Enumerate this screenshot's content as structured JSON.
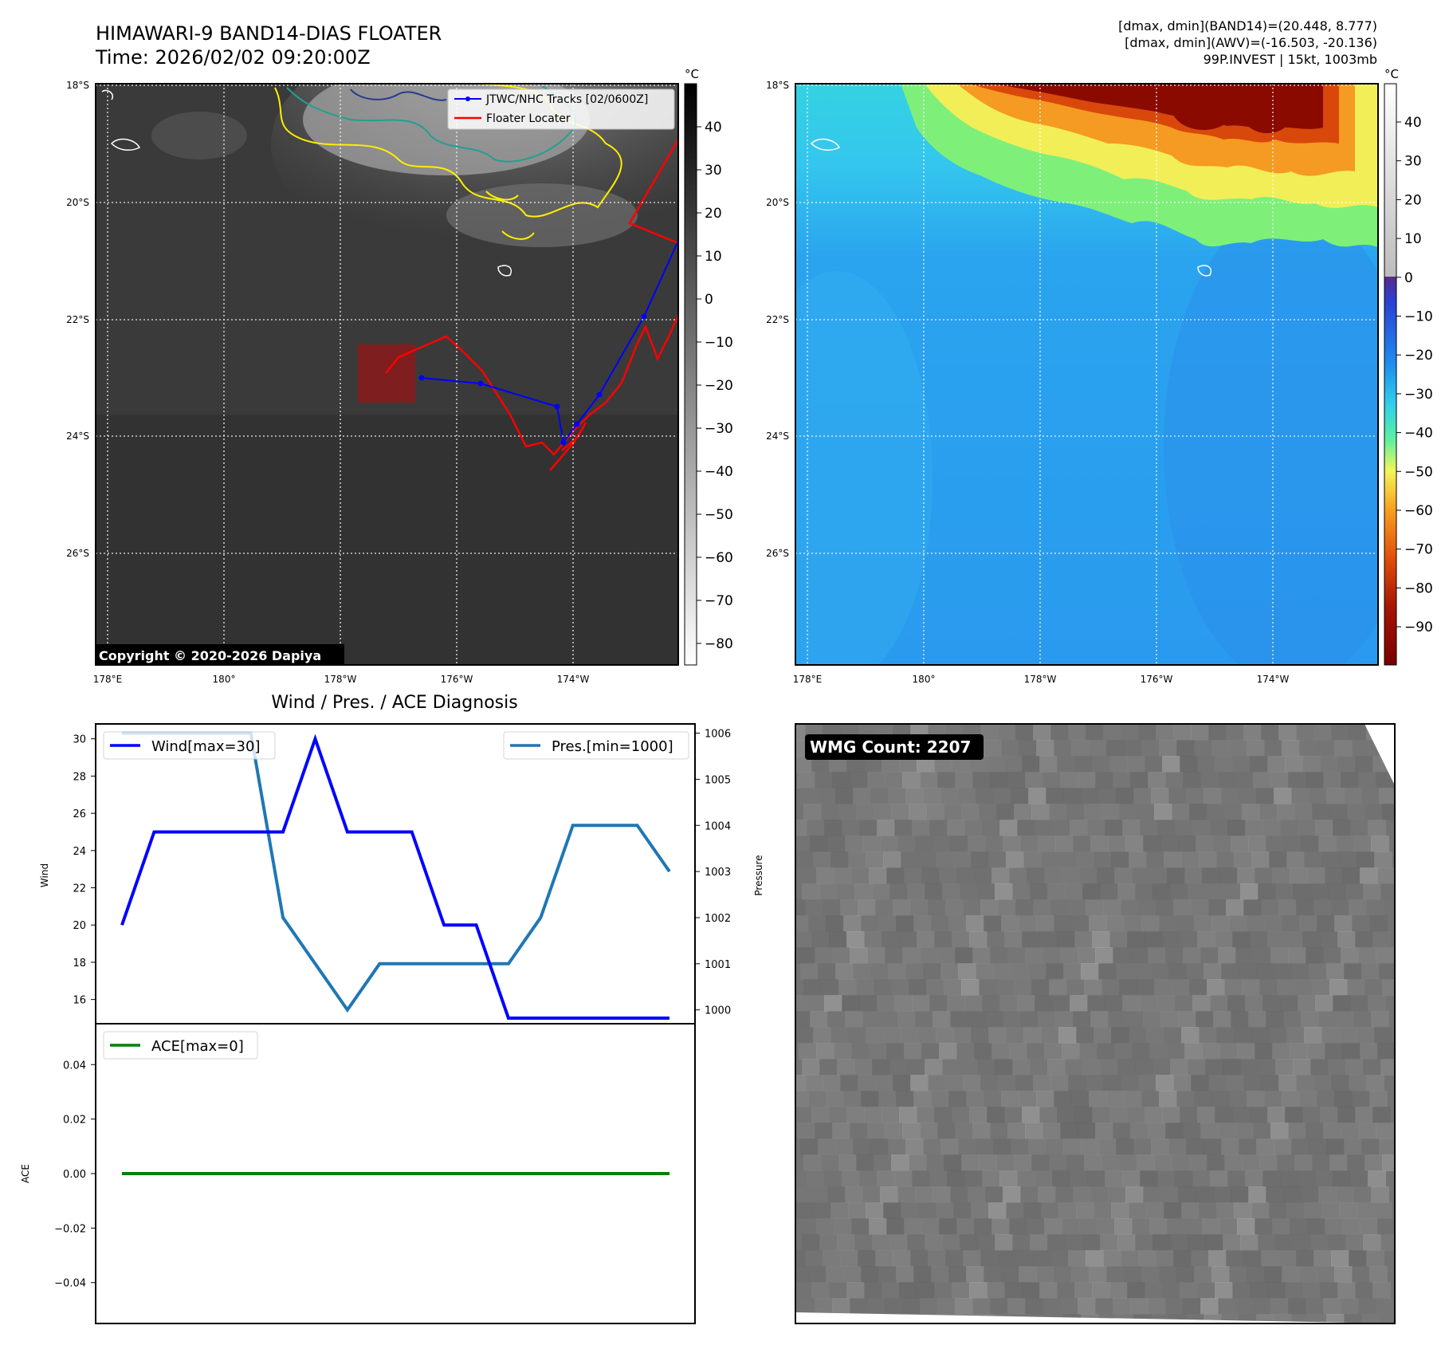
{
  "header": {
    "title_line1": "HIMAWARI-9 BAND14-DIAS FLOATER",
    "title_line2": "Time: 2026/02/02 09:20:00Z",
    "info_line1": "[dmax, dmin](BAND14)=(20.448, 8.777)",
    "info_line2": "[dmax, dmin](AWV)=(-16.503, -20.136)",
    "info_line3": "99P.INVEST | 15kt, 1003mb"
  },
  "map_axes": {
    "lat_labels": [
      "18°S",
      "20°S",
      "22°S",
      "24°S",
      "26°S"
    ],
    "lon_labels": [
      "178°E",
      "180°",
      "178°W",
      "176°W",
      "174°W"
    ]
  },
  "ir_panel": {
    "legend": [
      {
        "label": "JTWC/NHC Tracks [02/0600Z]",
        "color": "#0000ff"
      },
      {
        "label": "Floater Locater",
        "color": "#ff0000"
      }
    ],
    "copyright": "Copyright © 2020-2026 Dapiya",
    "colorbar": {
      "unit": "°C",
      "ticks": [
        "40",
        "30",
        "20",
        "10",
        "0",
        "−10",
        "−20",
        "−30",
        "−40",
        "−50",
        "−60",
        "−70",
        "−80"
      ]
    }
  },
  "wv_panel": {
    "colorbar": {
      "unit": "°C",
      "ticks": [
        "40",
        "30",
        "20",
        "10",
        "0",
        "−10",
        "−20",
        "−30",
        "−40",
        "−50",
        "−60",
        "−70",
        "−80",
        "−90"
      ]
    }
  },
  "diag_title": "Wind / Pres. / ACE Diagnosis",
  "wmg": {
    "label": "WMG Count: 2207"
  },
  "chart_data": [
    {
      "type": "line",
      "title": "Wind / Pres. / ACE Diagnosis",
      "x_index": [
        0,
        1,
        2,
        3,
        4,
        5,
        6,
        7,
        8,
        9,
        10,
        11,
        12,
        13,
        14,
        15,
        16,
        17
      ],
      "ylabel": "Wind",
      "ylabel_right": "Pressure",
      "ylim": [
        14.7,
        30.8
      ],
      "ylim_right": [
        999.7,
        1006.2
      ],
      "yticks": [
        16,
        18,
        20,
        22,
        24,
        26,
        28,
        30
      ],
      "yticks_right": [
        1000,
        1001,
        1002,
        1003,
        1004,
        1005,
        1006
      ],
      "series": [
        {
          "name": "Wind[max=30]",
          "axis": "left",
          "color": "#0000ff",
          "values": [
            20,
            25,
            25,
            25,
            25,
            25,
            30,
            25,
            25,
            25,
            20,
            20,
            15,
            15,
            15,
            15,
            15,
            15
          ]
        },
        {
          "name": "Pres.[min=1000]",
          "axis": "right",
          "color": "#1f77b4",
          "values": [
            1006,
            1006,
            1006,
            1006,
            1006,
            1002,
            1001,
            1000,
            1001,
            1001,
            1001,
            1001,
            1001,
            1002,
            1004,
            1004,
            1004,
            1003
          ]
        }
      ]
    },
    {
      "type": "line",
      "x_index": [
        0,
        1,
        2,
        3,
        4,
        5,
        6,
        7,
        8,
        9,
        10,
        11,
        12,
        13,
        14,
        15,
        16,
        17
      ],
      "ylabel": "ACE",
      "ylim": [
        -0.055,
        0.055
      ],
      "yticks": [
        -0.04,
        -0.02,
        0.0,
        0.02,
        0.04
      ],
      "ytick_labels": [
        "−0.04",
        "−0.02",
        "0.00",
        "0.02",
        "0.04"
      ],
      "series": [
        {
          "name": "ACE[max=0]",
          "color": "#008000",
          "values": [
            0,
            0,
            0,
            0,
            0,
            0,
            0,
            0,
            0,
            0,
            0,
            0,
            0,
            0,
            0,
            0,
            0,
            0
          ]
        }
      ]
    }
  ]
}
